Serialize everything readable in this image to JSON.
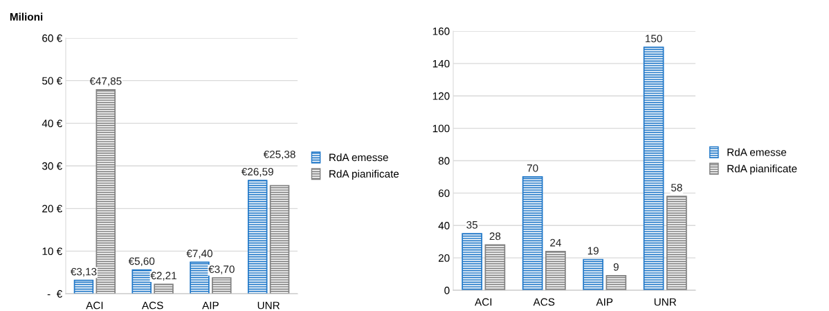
{
  "chart_data": [
    {
      "type": "bar",
      "ylabel": "Milioni",
      "categories": [
        "ACI",
        "ACS",
        "AIP",
        "UNR"
      ],
      "series": [
        {
          "name": "RdA emesse",
          "color": "#1f77c8",
          "values": [
            3.13,
            5.6,
            7.4,
            26.59
          ],
          "value_labels": [
            "€3,13",
            "€5,60",
            "€7,40",
            "€26,59"
          ]
        },
        {
          "name": "RdA pianificate",
          "color": "#7f7f7f",
          "values": [
            47.85,
            2.21,
            3.7,
            25.38
          ],
          "value_labels": [
            "€47,85",
            "€2,21",
            "€3,70",
            "€25,38"
          ]
        }
      ],
      "ylim": [
        0,
        60
      ],
      "yticks": [
        {
          "value": 0,
          "label": "-  €"
        },
        {
          "value": 10,
          "label": "10 €"
        },
        {
          "value": 20,
          "label": "20 €"
        },
        {
          "value": 30,
          "label": "30 €"
        },
        {
          "value": 40,
          "label": "40 €"
        },
        {
          "value": 50,
          "label": "50 €"
        },
        {
          "value": 60,
          "label": "60 €"
        }
      ],
      "grid": "y",
      "legend": "right"
    },
    {
      "type": "bar",
      "categories": [
        "ACI",
        "ACS",
        "AIP",
        "UNR"
      ],
      "series": [
        {
          "name": "RdA emesse",
          "color": "#1f77c8",
          "values": [
            35,
            70,
            19,
            150
          ]
        },
        {
          "name": "RdA pianificate",
          "color": "#7f7f7f",
          "values": [
            28,
            24,
            9,
            58
          ]
        }
      ],
      "ylim": [
        0,
        160
      ],
      "yticks": [
        0,
        20,
        40,
        60,
        80,
        100,
        120,
        140,
        160
      ],
      "grid": "y",
      "legend": "right",
      "data_labels": true
    }
  ]
}
